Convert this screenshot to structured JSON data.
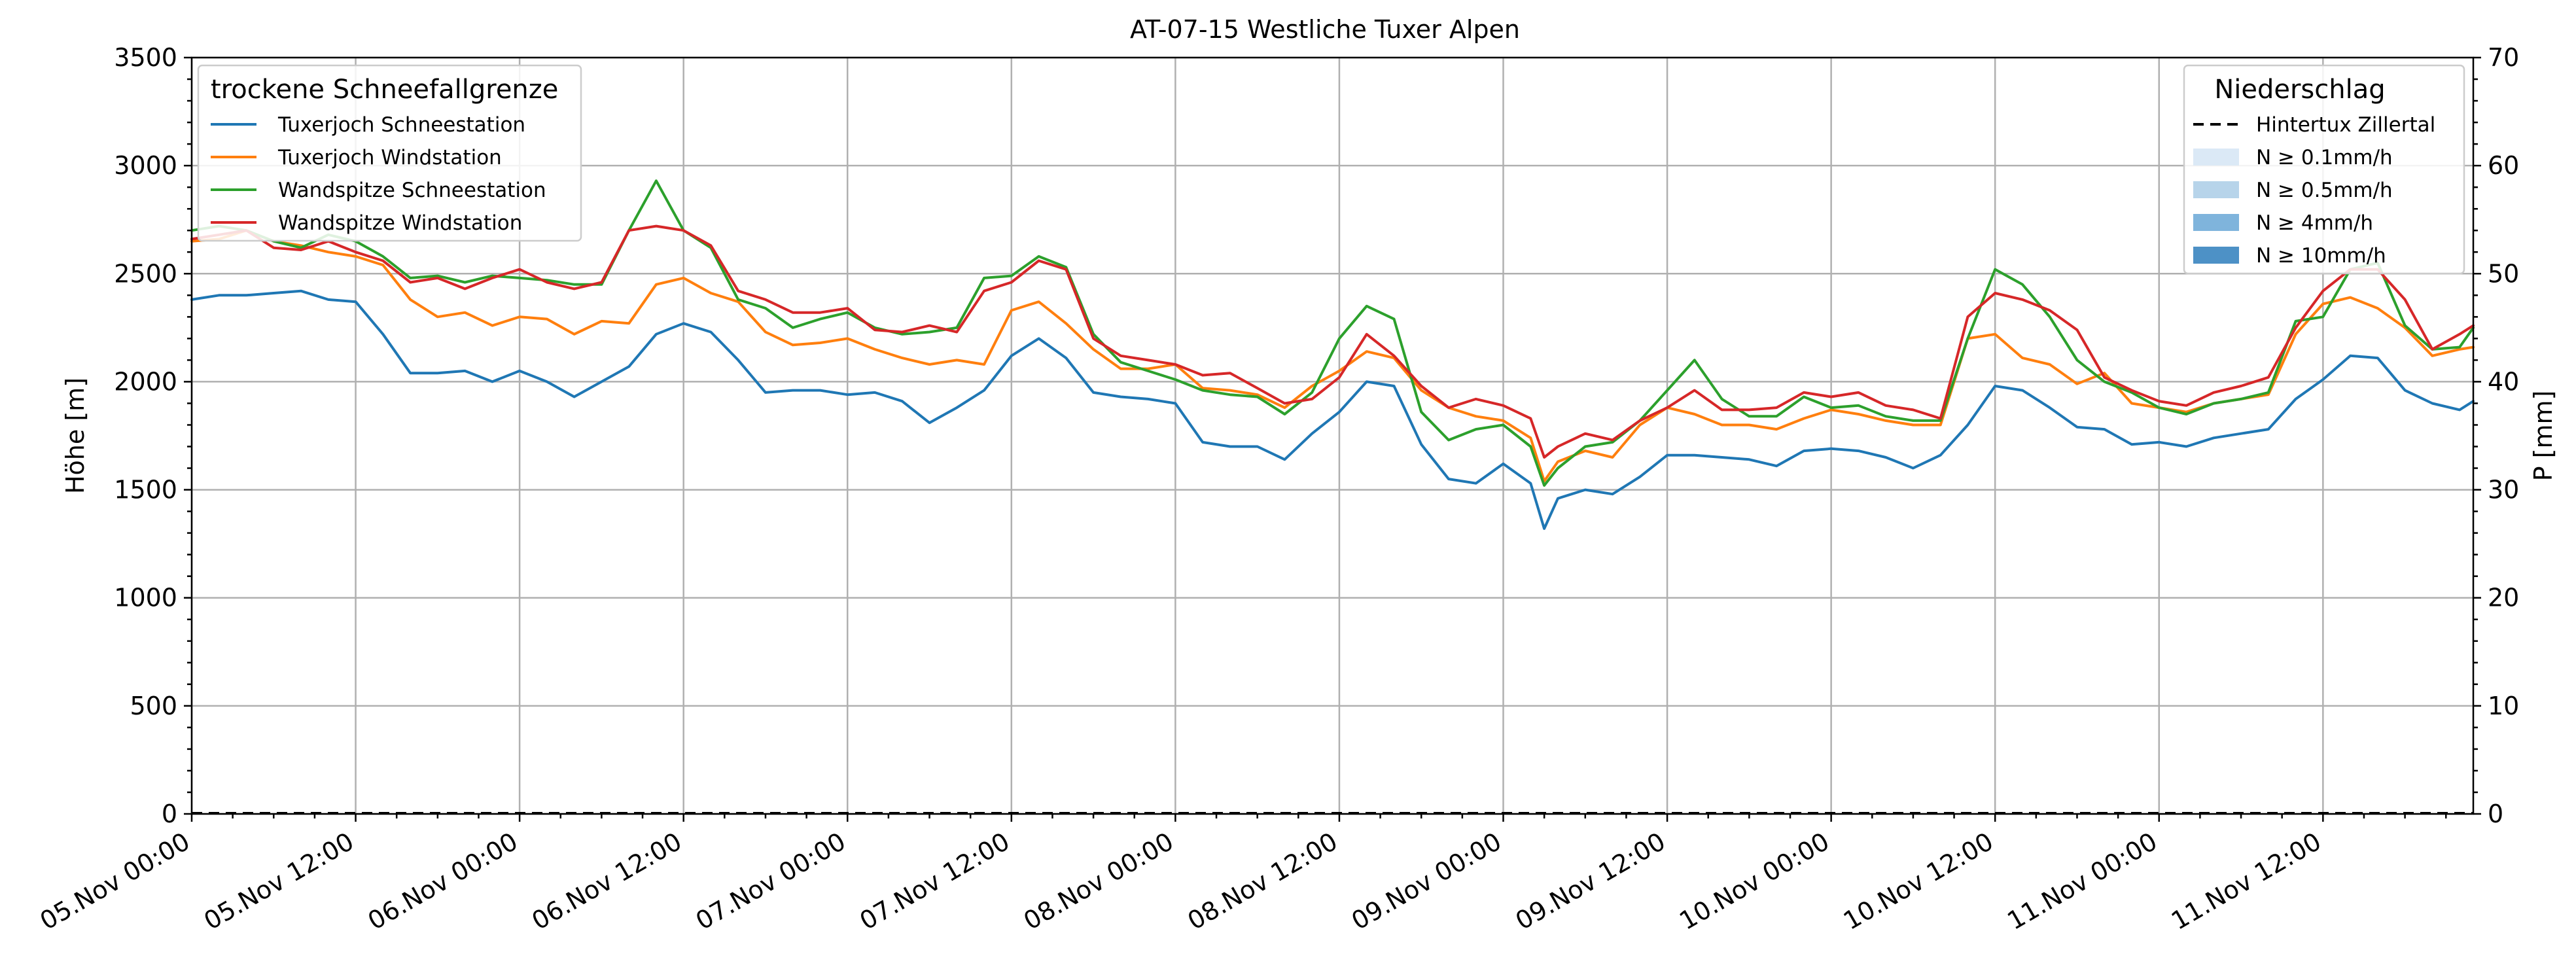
{
  "chart_data": {
    "type": "line",
    "title": "AT-07-15 Westliche Tuxer Alpen",
    "ylabel": "Höhe [m]",
    "y2label": "P [mm]",
    "xlabel": "",
    "ylim": [
      0,
      3500
    ],
    "y2lim": [
      0,
      70
    ],
    "xlim_hours": [
      0,
      167
    ],
    "grid": true,
    "yticks": [
      "0",
      "500",
      "1000",
      "1500",
      "2000",
      "2500",
      "3000",
      "3500"
    ],
    "y2ticks": [
      "0",
      "10",
      "20",
      "30",
      "40",
      "50",
      "60",
      "70"
    ],
    "xticks": [
      "05.Nov 00:00",
      "05.Nov 12:00",
      "06.Nov 00:00",
      "06.Nov 12:00",
      "07.Nov 00:00",
      "07.Nov 12:00",
      "08.Nov 00:00",
      "08.Nov 12:00",
      "09.Nov 00:00",
      "09.Nov 12:00",
      "10.Nov 00:00",
      "10.Nov 12:00",
      "11.Nov 00:00",
      "11.Nov 12:00"
    ],
    "legend_snow": {
      "title": "trockene Schneefallgrenze",
      "placement": "top-left"
    },
    "legend_precip": {
      "title": "Niederschlag",
      "placement": "top-right",
      "entries": [
        {
          "label": "Hintertux Zillertal",
          "style": "dashed",
          "color": "#000000"
        },
        {
          "label": "N ≥ 0.1mm/h",
          "style": "patch",
          "color": "#dbe9f6"
        },
        {
          "label": "N ≥ 0.5mm/h",
          "style": "patch",
          "color": "#b7d4ea"
        },
        {
          "label": "N ≥ 4mm/h",
          "style": "patch",
          "color": "#7fb4dc"
        },
        {
          "label": "N ≥ 10mm/h",
          "style": "patch",
          "color": "#4d91c6"
        }
      ]
    },
    "precip_series": {
      "name": "Hintertux Zillertal",
      "x": [
        0,
        167
      ],
      "values": [
        0,
        0
      ]
    },
    "series": [
      {
        "name": "Tuxerjoch Schneestation",
        "color": "#1f77b4",
        "x": [
          0,
          2,
          4,
          6,
          8,
          10,
          12,
          14,
          16,
          18,
          20,
          22,
          24,
          26,
          28,
          30,
          32,
          34,
          36,
          38,
          40,
          42,
          44,
          46,
          48,
          50,
          52,
          54,
          56,
          58,
          60,
          62,
          64,
          66,
          68,
          70,
          72,
          74,
          76,
          78,
          80,
          82,
          84,
          86,
          88,
          90,
          92,
          94,
          96,
          98,
          99,
          100,
          102,
          104,
          106,
          108,
          110,
          112,
          114,
          116,
          118,
          120,
          122,
          124,
          126,
          128,
          130,
          132,
          134,
          136,
          138,
          140,
          142,
          144,
          146,
          148,
          150,
          152,
          154,
          156,
          158,
          160,
          162,
          164,
          166,
          167
        ],
        "values": [
          2380,
          2400,
          2400,
          2410,
          2420,
          2380,
          2370,
          2220,
          2040,
          2040,
          2050,
          2000,
          2050,
          2000,
          1930,
          2000,
          2070,
          2220,
          2270,
          2230,
          2100,
          1950,
          1960,
          1960,
          1940,
          1950,
          1910,
          1810,
          1880,
          1960,
          2120,
          2200,
          2110,
          1950,
          1930,
          1920,
          1900,
          1720,
          1700,
          1700,
          1640,
          1760,
          1860,
          2000,
          1980,
          1710,
          1550,
          1530,
          1620,
          1530,
          1320,
          1460,
          1500,
          1480,
          1560,
          1660,
          1660,
          1650,
          1640,
          1610,
          1680,
          1690,
          1680,
          1650,
          1600,
          1660,
          1800,
          1980,
          1960,
          1880,
          1790,
          1780,
          1710,
          1720,
          1700,
          1740,
          1760,
          1780,
          1920,
          2010,
          2120,
          2110,
          1960,
          1900,
          1870,
          1910
        ]
      },
      {
        "name": "Tuxerjoch Windstation",
        "color": "#ff7f0e",
        "x": [
          0,
          2,
          4,
          6,
          8,
          10,
          12,
          14,
          16,
          18,
          20,
          22,
          24,
          26,
          28,
          30,
          32,
          34,
          36,
          38,
          40,
          42,
          44,
          46,
          48,
          50,
          52,
          54,
          56,
          58,
          60,
          62,
          64,
          66,
          68,
          70,
          72,
          74,
          76,
          78,
          80,
          82,
          84,
          86,
          88,
          90,
          92,
          94,
          96,
          98,
          99,
          100,
          102,
          104,
          106,
          108,
          110,
          112,
          114,
          116,
          118,
          120,
          122,
          124,
          126,
          128,
          130,
          132,
          134,
          136,
          138,
          140,
          142,
          144,
          146,
          148,
          150,
          152,
          154,
          156,
          158,
          160,
          162,
          164,
          166,
          167
        ],
        "values": [
          2650,
          2660,
          2700,
          2650,
          2630,
          2600,
          2580,
          2540,
          2380,
          2300,
          2320,
          2260,
          2300,
          2290,
          2220,
          2280,
          2270,
          2450,
          2480,
          2410,
          2370,
          2230,
          2170,
          2180,
          2200,
          2150,
          2110,
          2080,
          2100,
          2080,
          2330,
          2370,
          2270,
          2150,
          2060,
          2060,
          2080,
          1970,
          1960,
          1940,
          1880,
          1980,
          2050,
          2140,
          2110,
          1960,
          1880,
          1840,
          1820,
          1740,
          1540,
          1630,
          1680,
          1650,
          1800,
          1880,
          1850,
          1800,
          1800,
          1780,
          1830,
          1870,
          1850,
          1820,
          1800,
          1800,
          2200,
          2220,
          2110,
          2080,
          1990,
          2040,
          1900,
          1880,
          1860,
          1900,
          1920,
          1940,
          2220,
          2360,
          2390,
          2340,
          2250,
          2120,
          2150,
          2160
        ]
      },
      {
        "name": "Wandspitze Schneestation",
        "color": "#2ca02c",
        "x": [
          0,
          2,
          4,
          6,
          8,
          10,
          12,
          14,
          16,
          18,
          20,
          22,
          24,
          26,
          28,
          30,
          32,
          34,
          36,
          38,
          40,
          42,
          44,
          46,
          48,
          50,
          52,
          54,
          56,
          58,
          60,
          62,
          64,
          66,
          68,
          70,
          72,
          74,
          76,
          78,
          80,
          82,
          84,
          86,
          88,
          90,
          92,
          94,
          96,
          98,
          99,
          100,
          102,
          104,
          106,
          108,
          110,
          112,
          114,
          116,
          118,
          120,
          122,
          124,
          126,
          128,
          130,
          132,
          134,
          136,
          138,
          140,
          142,
          144,
          146,
          148,
          150,
          152,
          154,
          156,
          158,
          160,
          162,
          164,
          166,
          167
        ],
        "values": [
          2700,
          2720,
          2700,
          2650,
          2620,
          2680,
          2650,
          2580,
          2480,
          2490,
          2460,
          2490,
          2480,
          2470,
          2450,
          2450,
          2700,
          2930,
          2700,
          2620,
          2380,
          2340,
          2250,
          2290,
          2320,
          2250,
          2220,
          2230,
          2250,
          2480,
          2490,
          2580,
          2530,
          2220,
          2090,
          2050,
          2010,
          1960,
          1940,
          1930,
          1850,
          1950,
          2200,
          2350,
          2290,
          1860,
          1730,
          1780,
          1800,
          1700,
          1520,
          1600,
          1700,
          1720,
          1820,
          1960,
          2100,
          1920,
          1840,
          1840,
          1930,
          1880,
          1890,
          1840,
          1820,
          1820,
          2200,
          2520,
          2450,
          2300,
          2100,
          2000,
          1950,
          1880,
          1850,
          1900,
          1920,
          1950,
          2280,
          2300,
          2520,
          2550,
          2260,
          2150,
          2160,
          2250
        ]
      },
      {
        "name": "Wandspitze Windstation",
        "color": "#d62728",
        "x": [
          0,
          2,
          4,
          6,
          8,
          10,
          12,
          14,
          16,
          18,
          20,
          22,
          24,
          26,
          28,
          30,
          32,
          34,
          36,
          38,
          40,
          42,
          44,
          46,
          48,
          50,
          52,
          54,
          56,
          58,
          60,
          62,
          64,
          66,
          68,
          70,
          72,
          74,
          76,
          78,
          80,
          82,
          84,
          86,
          88,
          90,
          92,
          94,
          96,
          98,
          99,
          100,
          102,
          104,
          106,
          108,
          110,
          112,
          114,
          116,
          118,
          120,
          122,
          124,
          126,
          128,
          130,
          132,
          134,
          136,
          138,
          140,
          142,
          144,
          146,
          148,
          150,
          152,
          154,
          156,
          158,
          160,
          162,
          164,
          166,
          167
        ],
        "values": [
          2660,
          2680,
          2700,
          2620,
          2610,
          2650,
          2600,
          2560,
          2460,
          2480,
          2430,
          2480,
          2520,
          2460,
          2430,
          2460,
          2700,
          2720,
          2700,
          2630,
          2420,
          2380,
          2320,
          2320,
          2340,
          2240,
          2230,
          2260,
          2230,
          2420,
          2460,
          2560,
          2520,
          2200,
          2120,
          2100,
          2080,
          2030,
          2040,
          1970,
          1900,
          1920,
          2020,
          2220,
          2120,
          1980,
          1880,
          1920,
          1890,
          1830,
          1650,
          1700,
          1760,
          1730,
          1820,
          1880,
          1960,
          1870,
          1870,
          1880,
          1950,
          1930,
          1950,
          1890,
          1870,
          1830,
          2300,
          2410,
          2380,
          2330,
          2240,
          2020,
          1960,
          1910,
          1890,
          1950,
          1980,
          2020,
          2250,
          2420,
          2520,
          2520,
          2380,
          2150,
          2220,
          2260
        ]
      }
    ]
  }
}
